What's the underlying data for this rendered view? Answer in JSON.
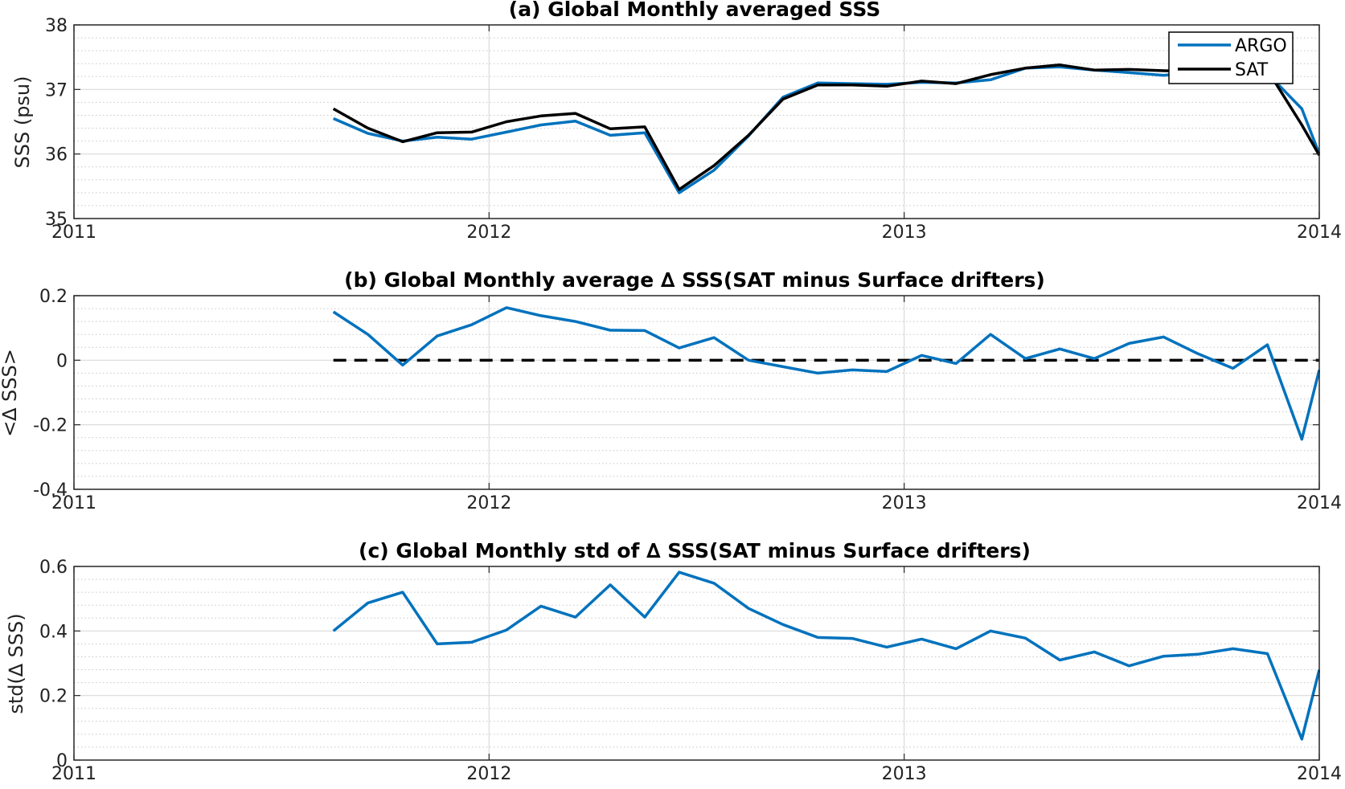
{
  "colors": {
    "argo": "#0072BD",
    "sat": "#000000",
    "grid_major": "#d9d9d9",
    "grid_minor": "#c8c8c8",
    "axis": "#262626"
  },
  "chart_data": [
    {
      "type": "line",
      "title": "(a) Global Monthly averaged SSS",
      "ylabel": "SSS (psu)",
      "xlabel": "",
      "xlim": [
        2011,
        2014
      ],
      "ylim": [
        35,
        38
      ],
      "x_ticks": [
        "2011",
        "2012",
        "2013",
        "2014"
      ],
      "y_ticks": [
        "35",
        "36",
        "37",
        "38"
      ],
      "grid": "major+minor",
      "legend": {
        "position": "top-right",
        "entries": [
          "ARGO",
          "SAT"
        ]
      },
      "x": [
        2011.625,
        2011.708,
        2011.792,
        2011.875,
        2011.958,
        2012.042,
        2012.125,
        2012.208,
        2012.292,
        2012.375,
        2012.458,
        2012.542,
        2012.625,
        2012.708,
        2012.792,
        2012.875,
        2012.958,
        2013.042,
        2013.125,
        2013.208,
        2013.292,
        2013.375,
        2013.458,
        2013.542,
        2013.625,
        2013.708,
        2013.792,
        2013.875,
        2013.958,
        2014.0
      ],
      "series": [
        {
          "name": "ARGO",
          "color": "#0072BD",
          "values": [
            36.55,
            36.32,
            36.2,
            36.26,
            36.23,
            36.34,
            36.45,
            36.51,
            36.29,
            36.33,
            35.4,
            35.75,
            36.28,
            36.88,
            37.1,
            37.09,
            37.08,
            37.11,
            37.1,
            37.15,
            37.33,
            37.35,
            37.3,
            37.26,
            37.22,
            37.27,
            37.3,
            37.25,
            36.7,
            36.0
          ]
        },
        {
          "name": "SAT",
          "color": "#000000",
          "values": [
            36.7,
            36.4,
            36.19,
            36.33,
            36.34,
            36.5,
            36.59,
            36.63,
            36.39,
            36.42,
            35.45,
            35.82,
            36.29,
            36.85,
            37.07,
            37.07,
            37.05,
            37.13,
            37.09,
            37.23,
            37.33,
            37.38,
            37.3,
            37.31,
            37.29,
            37.28,
            37.3,
            37.3,
            36.45,
            35.98
          ]
        }
      ]
    },
    {
      "type": "line",
      "title": "(b) Global Monthly average ∆ SSS(SAT minus Surface drifters)",
      "ylabel": "<∆ SSS>",
      "xlabel": "",
      "xlim": [
        2011,
        2014
      ],
      "ylim": [
        -0.4,
        0.2
      ],
      "x_ticks": [
        "2011",
        "2012",
        "2013",
        "2014"
      ],
      "y_ticks": [
        "-0.4",
        "-0.2",
        "0",
        "0.2"
      ],
      "grid": "major+minor",
      "reference_line": {
        "y": 0,
        "x_range": [
          2011.625,
          2014.0
        ],
        "style": "dashed",
        "color": "#000000"
      },
      "x": [
        2011.625,
        2011.708,
        2011.792,
        2011.875,
        2011.958,
        2012.042,
        2012.125,
        2012.208,
        2012.292,
        2012.375,
        2012.458,
        2012.542,
        2012.625,
        2012.708,
        2012.792,
        2012.875,
        2012.958,
        2013.042,
        2013.125,
        2013.208,
        2013.292,
        2013.375,
        2013.458,
        2013.542,
        2013.625,
        2013.708,
        2013.792,
        2013.875,
        2013.958,
        2014.0
      ],
      "series": [
        {
          "color": "#0072BD",
          "values": [
            0.15,
            0.08,
            -0.015,
            0.075,
            0.11,
            0.163,
            0.138,
            0.12,
            0.093,
            0.092,
            0.038,
            0.07,
            0.0,
            -0.02,
            -0.04,
            -0.03,
            -0.035,
            0.015,
            -0.01,
            0.08,
            0.005,
            0.035,
            0.005,
            0.052,
            0.072,
            0.02,
            -0.025,
            0.048,
            -0.245,
            -0.03
          ]
        }
      ]
    },
    {
      "type": "line",
      "title": "(c) Global Monthly std of ∆ SSS(SAT minus Surface drifters)",
      "ylabel": "std(∆ SSS)",
      "xlabel": "",
      "xlim": [
        2011,
        2014
      ],
      "ylim": [
        0,
        0.6
      ],
      "x_ticks": [
        "2011",
        "2012",
        "2013",
        "2014"
      ],
      "y_ticks": [
        "0",
        "0.2",
        "0.4",
        "0.6"
      ],
      "grid": "major+minor",
      "x": [
        2011.625,
        2011.708,
        2011.792,
        2011.875,
        2011.958,
        2012.042,
        2012.125,
        2012.208,
        2012.292,
        2012.375,
        2012.458,
        2012.542,
        2012.625,
        2012.708,
        2012.792,
        2012.875,
        2012.958,
        2013.042,
        2013.125,
        2013.208,
        2013.292,
        2013.375,
        2013.458,
        2013.542,
        2013.625,
        2013.708,
        2013.792,
        2013.875,
        2013.958,
        2014.0
      ],
      "series": [
        {
          "color": "#0072BD",
          "values": [
            0.4,
            0.487,
            0.52,
            0.36,
            0.365,
            0.403,
            0.477,
            0.443,
            0.543,
            0.443,
            0.582,
            0.548,
            0.47,
            0.42,
            0.38,
            0.377,
            0.35,
            0.375,
            0.345,
            0.4,
            0.378,
            0.31,
            0.335,
            0.292,
            0.322,
            0.328,
            0.345,
            0.33,
            0.065,
            0.28
          ]
        }
      ]
    }
  ]
}
